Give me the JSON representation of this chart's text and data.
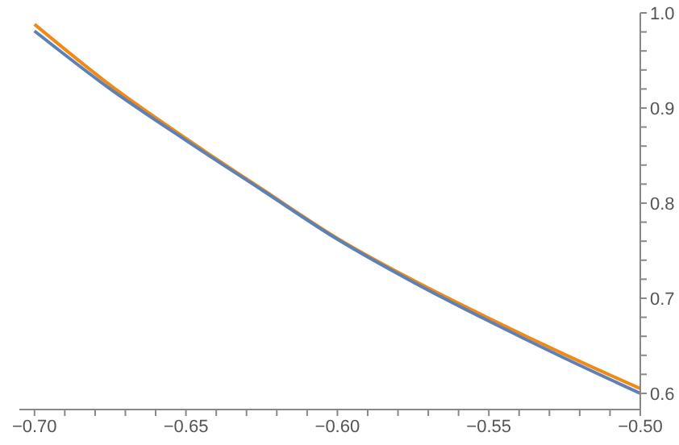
{
  "chart_data": {
    "type": "line",
    "x": [
      -0.7,
      -0.675,
      -0.65,
      -0.625,
      -0.6,
      -0.575,
      -0.55,
      -0.525,
      -0.5
    ],
    "series": [
      {
        "color": "#ef8a17",
        "values": [
          0.988,
          0.924,
          0.868,
          0.815,
          0.763,
          0.719,
          0.679,
          0.641,
          0.605
        ]
      },
      {
        "color": "#5e81b5",
        "values": [
          0.981,
          0.92,
          0.866,
          0.814,
          0.762,
          0.717,
          0.676,
          0.637,
          0.6
        ]
      }
    ],
    "xlim": [
      -0.705,
      -0.5
    ],
    "ylim": [
      0.583,
      1.0
    ],
    "xticks": [
      {
        "value": -0.7,
        "label": "−0.70"
      },
      {
        "value": -0.69,
        "label": null
      },
      {
        "value": -0.68,
        "label": null
      },
      {
        "value": -0.67,
        "label": null
      },
      {
        "value": -0.66,
        "label": null
      },
      {
        "value": -0.65,
        "label": "−0.65"
      },
      {
        "value": -0.64,
        "label": null
      },
      {
        "value": -0.63,
        "label": null
      },
      {
        "value": -0.62,
        "label": null
      },
      {
        "value": -0.61,
        "label": null
      },
      {
        "value": -0.6,
        "label": "−0.60"
      },
      {
        "value": -0.59,
        "label": null
      },
      {
        "value": -0.58,
        "label": null
      },
      {
        "value": -0.57,
        "label": null
      },
      {
        "value": -0.56,
        "label": null
      },
      {
        "value": -0.55,
        "label": "−0.55"
      },
      {
        "value": -0.54,
        "label": null
      },
      {
        "value": -0.53,
        "label": null
      },
      {
        "value": -0.52,
        "label": null
      },
      {
        "value": -0.51,
        "label": null
      },
      {
        "value": -0.5,
        "label": "−0.50"
      }
    ],
    "yticks": [
      {
        "value": 0.6,
        "label": "0.6"
      },
      {
        "value": 0.62,
        "label": null
      },
      {
        "value": 0.64,
        "label": null
      },
      {
        "value": 0.66,
        "label": null
      },
      {
        "value": 0.68,
        "label": null
      },
      {
        "value": 0.7,
        "label": "0.7"
      },
      {
        "value": 0.72,
        "label": null
      },
      {
        "value": 0.74,
        "label": null
      },
      {
        "value": 0.76,
        "label": null
      },
      {
        "value": 0.78,
        "label": null
      },
      {
        "value": 0.8,
        "label": "0.8"
      },
      {
        "value": 0.82,
        "label": null
      },
      {
        "value": 0.84,
        "label": null
      },
      {
        "value": 0.86,
        "label": null
      },
      {
        "value": 0.88,
        "label": null
      },
      {
        "value": 0.9,
        "label": "0.9"
      },
      {
        "value": 0.92,
        "label": null
      },
      {
        "value": 0.94,
        "label": null
      },
      {
        "value": 0.96,
        "label": null
      },
      {
        "value": 0.98,
        "label": null
      },
      {
        "value": 1.0,
        "label": "1.0"
      }
    ],
    "grid": false,
    "marker": "none",
    "line_style": "solid"
  }
}
